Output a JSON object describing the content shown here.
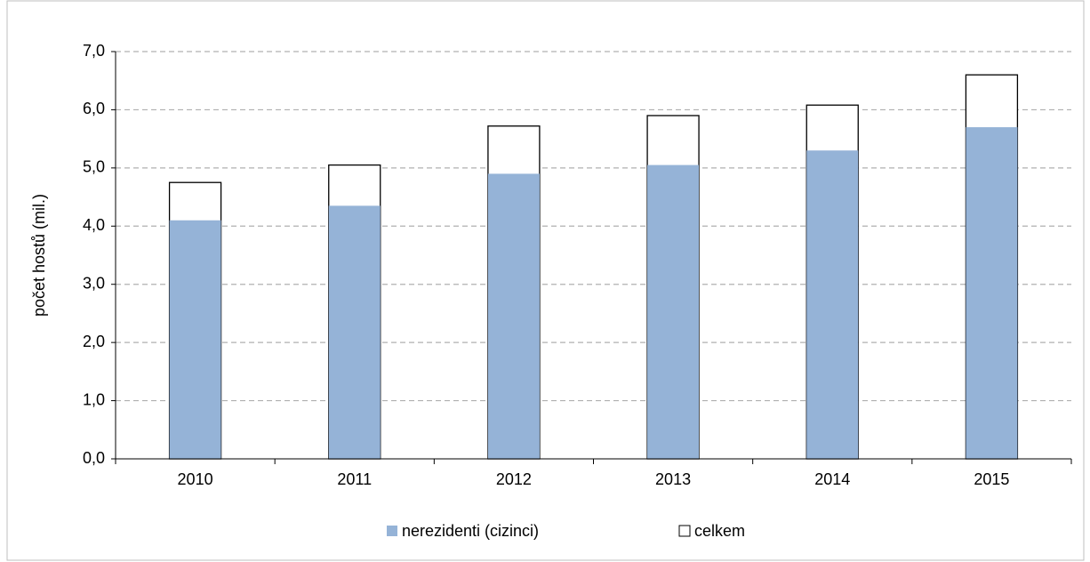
{
  "chart_data": {
    "type": "bar",
    "categories": [
      "2010",
      "2011",
      "2012",
      "2013",
      "2014",
      "2015"
    ],
    "series": [
      {
        "name": "nerezidenti (cizinci)",
        "color": "#95b3d7",
        "values": [
          4.1,
          4.35,
          4.9,
          5.05,
          5.3,
          5.7
        ]
      },
      {
        "name": "celkem",
        "color": "#ffffff",
        "values": [
          4.75,
          5.05,
          5.72,
          5.9,
          6.08,
          6.6
        ]
      }
    ],
    "y_label": "počet hostů (mil.)",
    "ylim": [
      0,
      7
    ],
    "yticks": [
      {
        "value": 0,
        "label": "0,0"
      },
      {
        "value": 1,
        "label": "1,0"
      },
      {
        "value": 2,
        "label": "2,0"
      },
      {
        "value": 3,
        "label": "3,0"
      },
      {
        "value": 4,
        "label": "4,0"
      },
      {
        "value": 5,
        "label": "5,0"
      },
      {
        "value": 6,
        "label": "6,0"
      },
      {
        "value": 7,
        "label": "7,0"
      }
    ],
    "grid": true,
    "legend": "bottom"
  }
}
